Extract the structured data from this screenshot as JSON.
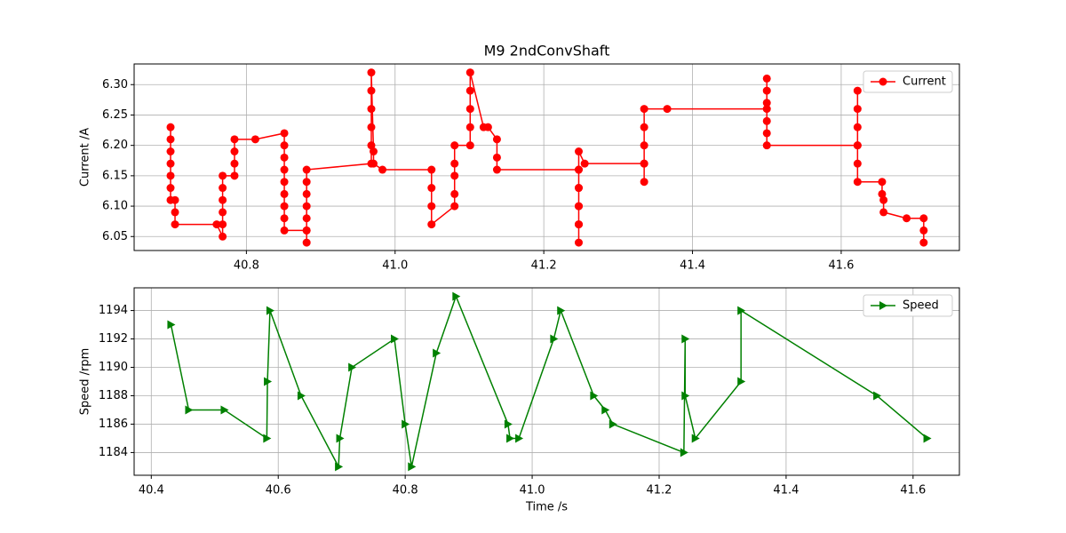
{
  "chart_data": [
    {
      "type": "line",
      "title": "M9 2ndConvShaft",
      "y_label": "Current /A",
      "x": [
        40.698,
        40.698,
        40.698,
        40.698,
        40.698,
        40.698,
        40.698,
        40.704,
        40.704,
        40.704,
        40.76,
        40.768,
        40.768,
        40.768,
        40.768,
        40.768,
        40.768,
        40.784,
        40.784,
        40.784,
        40.784,
        40.812,
        40.851,
        40.851,
        40.851,
        40.851,
        40.851,
        40.851,
        40.851,
        40.851,
        40.851,
        40.881,
        40.881,
        40.881,
        40.881,
        40.881,
        40.881,
        40.881,
        40.881,
        40.968,
        40.968,
        40.968,
        40.968,
        40.968,
        40.968,
        40.971,
        40.971,
        40.983,
        41.049,
        41.049,
        41.049,
        41.049,
        41.08,
        41.08,
        41.08,
        41.08,
        41.08,
        41.101,
        41.101,
        41.101,
        41.101,
        41.101,
        41.119,
        41.125,
        41.137,
        41.137,
        41.137,
        41.247,
        41.247,
        41.247,
        41.247,
        41.247,
        41.247,
        41.247,
        41.247,
        41.247,
        41.247,
        41.255,
        41.335,
        41.335,
        41.335,
        41.335,
        41.335,
        41.335,
        41.366,
        41.5,
        41.5,
        41.5,
        41.5,
        41.5,
        41.5,
        41.5,
        41.622,
        41.622,
        41.622,
        41.622,
        41.622,
        41.622,
        41.622,
        41.655,
        41.655,
        41.657,
        41.657,
        41.688,
        41.711,
        41.711,
        41.711
      ],
      "series": [
        {
          "name": "Current",
          "color": "#ff0000",
          "marker": "circle",
          "values": [
            6.23,
            6.21,
            6.19,
            6.17,
            6.15,
            6.13,
            6.11,
            6.11,
            6.09,
            6.07,
            6.07,
            6.05,
            6.07,
            6.09,
            6.11,
            6.13,
            6.15,
            6.15,
            6.17,
            6.19,
            6.21,
            6.21,
            6.22,
            6.2,
            6.18,
            6.16,
            6.14,
            6.12,
            6.1,
            6.08,
            6.06,
            6.06,
            6.04,
            6.06,
            6.08,
            6.1,
            6.12,
            6.14,
            6.16,
            6.17,
            6.2,
            6.23,
            6.26,
            6.29,
            6.32,
            6.19,
            6.17,
            6.16,
            6.16,
            6.13,
            6.1,
            6.07,
            6.1,
            6.12,
            6.15,
            6.17,
            6.2,
            6.2,
            6.23,
            6.26,
            6.29,
            6.32,
            6.23,
            6.23,
            6.21,
            6.18,
            6.16,
            6.16,
            6.13,
            6.1,
            6.07,
            6.04,
            6.07,
            6.1,
            6.13,
            6.16,
            6.19,
            6.17,
            6.17,
            6.14,
            6.17,
            6.2,
            6.23,
            6.26,
            6.26,
            6.26,
            6.24,
            6.27,
            6.29,
            6.31,
            6.22,
            6.2,
            6.2,
            6.29,
            6.26,
            6.23,
            6.2,
            6.17,
            6.14,
            6.14,
            6.12,
            6.11,
            6.09,
            6.08,
            6.08,
            6.06,
            6.04
          ]
        }
      ],
      "xlim": [
        40.649,
        41.759
      ],
      "ylim": [
        6.027,
        6.334
      ],
      "xticks": [
        40.8,
        {
          "value": 41,
          "label": "41.0"
        },
        41.2,
        41.4,
        41.6
      ],
      "yticks": [
        6.05,
        {
          "value": 6.1,
          "label": "6.10"
        },
        6.15,
        {
          "value": 6.2,
          "label": "6.20"
        },
        6.25,
        {
          "value": 6.3,
          "label": "6.30"
        }
      ],
      "grid": true,
      "legend": "upper right"
    },
    {
      "type": "line",
      "x_label": "Time /s",
      "y_label": "Speed /rpm",
      "x": [
        40.431,
        40.459,
        40.515,
        40.582,
        40.583,
        40.587,
        40.636,
        40.695,
        40.697,
        40.716,
        40.783,
        40.8,
        40.81,
        40.849,
        40.88,
        40.962,
        40.965,
        40.979,
        41.034,
        41.045,
        41.097,
        41.115,
        41.127,
        41.239,
        41.241,
        41.241,
        41.257,
        41.329,
        41.329,
        41.543,
        41.622
      ],
      "series": [
        {
          "name": "Speed",
          "color": "#008000",
          "marker": "triangle-right",
          "values": [
            1193,
            1187,
            1187,
            1185,
            1189,
            1194,
            1188,
            1183,
            1185,
            1190,
            1192,
            1186,
            1183,
            1191,
            1195,
            1186,
            1185,
            1185,
            1192,
            1194,
            1188,
            1187,
            1186,
            1184,
            1192,
            1188,
            1185,
            1189,
            1194,
            1188,
            1185
          ]
        }
      ],
      "xlim": [
        40.373,
        41.673
      ],
      "ylim": [
        1182.4,
        1195.6
      ],
      "xticks": [
        40.4,
        40.6,
        40.8,
        {
          "value": 41,
          "label": "41.0"
        },
        41.2,
        41.4,
        41.6
      ],
      "yticks": [
        1184,
        1186,
        1188,
        1190,
        1192,
        1194
      ],
      "grid": true,
      "legend": "upper right"
    }
  ]
}
